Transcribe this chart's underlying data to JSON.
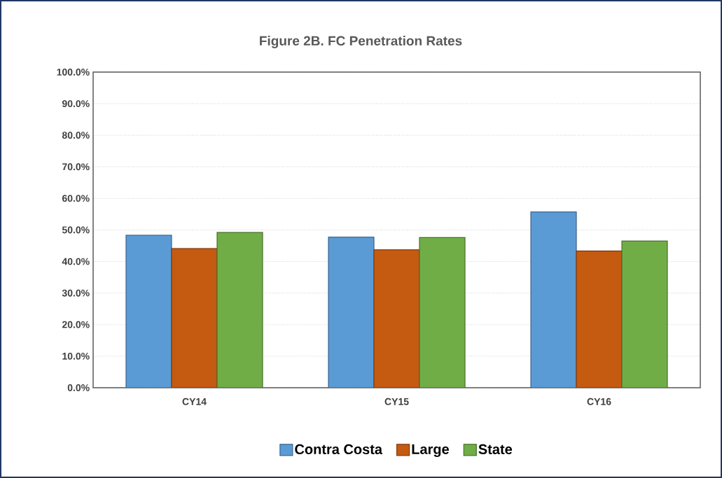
{
  "chart_data": {
    "type": "bar",
    "title": "Figure 2B. FC Penetration Rates",
    "categories": [
      "CY14",
      "CY15",
      "CY16"
    ],
    "series": [
      {
        "name": "Contra Costa",
        "color": "#5b9bd5",
        "values": [
          48.3,
          47.7,
          55.7
        ]
      },
      {
        "name": "Large",
        "color": "#c55a11",
        "values": [
          44.1,
          43.7,
          43.3
        ]
      },
      {
        "name": "State",
        "color": "#70ad47",
        "values": [
          49.2,
          47.6,
          46.5
        ]
      }
    ],
    "ylim": [
      0,
      100
    ],
    "yticks": [
      {
        "value": 0,
        "label": "0.0%"
      },
      {
        "value": 10,
        "label": "10.0%"
      },
      {
        "value": 20,
        "label": "20.0%"
      },
      {
        "value": 30,
        "label": "30.0%"
      },
      {
        "value": 40,
        "label": "40.0%"
      },
      {
        "value": 50,
        "label": "50.0%"
      },
      {
        "value": 60,
        "label": "60.0%"
      },
      {
        "value": 70,
        "label": "70.0%"
      },
      {
        "value": 80,
        "label": "80.0%"
      },
      {
        "value": 90,
        "label": "90.0%"
      },
      {
        "value": 100,
        "label": "100.0%"
      }
    ],
    "grid": "y",
    "legend": "bottom"
  }
}
